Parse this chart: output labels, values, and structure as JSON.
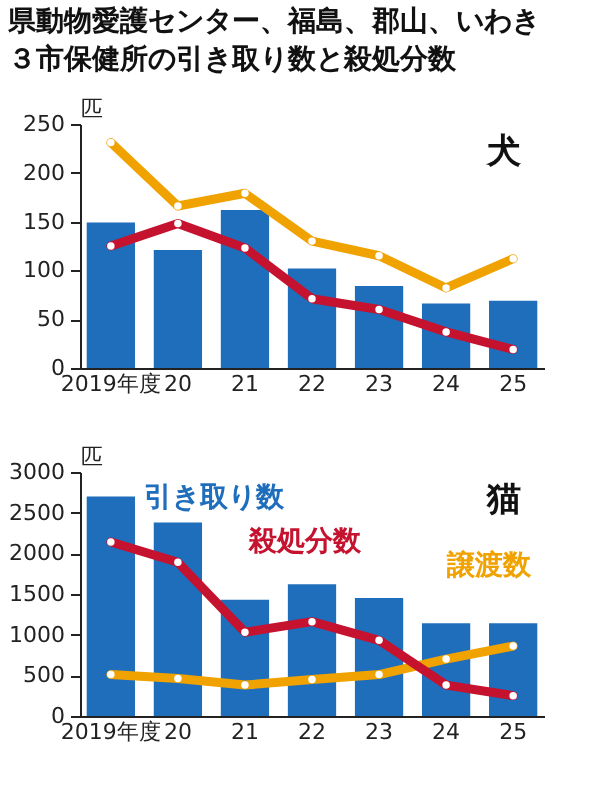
{
  "chart_data": [
    {
      "type": "bar",
      "title": "県動物愛護センター、福島、郡山、いわき３市保健所の引き取り数と殺処分数",
      "subtitle": "犬",
      "ylabel": "匹",
      "categories": [
        "2019年度",
        "20",
        "21",
        "22",
        "23",
        "24",
        "25"
      ],
      "series": [
        {
          "color": "#1f6ebc",
          "values": [
            149,
            121,
            162,
            102,
            84,
            66,
            69
          ]
        },
        {
          "type": "line",
          "color": "#f0a200",
          "values": [
            231,
            166,
            179,
            130,
            115,
            82,
            112
          ]
        },
        {
          "type": "line",
          "color": "#c4122f",
          "values": [
            125,
            148,
            123,
            71,
            60,
            37,
            19
          ]
        }
      ],
      "ylim": [
        0,
        250
      ],
      "yticks": [
        0,
        50,
        100,
        150,
        200,
        250
      ],
      "marker": "circle",
      "line_style": "solid"
    },
    {
      "type": "bar",
      "subtitle": "猫",
      "ylabel": "匹",
      "categories": [
        "2019年度",
        "20",
        "21",
        "22",
        "23",
        "24",
        "25"
      ],
      "series": [
        {
          "name": "引き取り数",
          "color": "#1f6ebc",
          "values": [
            2700,
            2380,
            1430,
            1620,
            1450,
            1140,
            1140
          ]
        },
        {
          "type": "line",
          "name": "譲渡数",
          "color": "#f0a200",
          "values": [
            510,
            460,
            380,
            450,
            510,
            700,
            860
          ]
        },
        {
          "type": "line",
          "name": "殺処分数",
          "color": "#c4122f",
          "values": [
            2140,
            1890,
            1030,
            1160,
            930,
            380,
            250
          ]
        }
      ],
      "ylim": [
        0,
        3000
      ],
      "yticks": [
        0,
        500,
        1000,
        1500,
        2000,
        2500,
        3000
      ],
      "marker": "circle",
      "line_style": "solid"
    }
  ]
}
